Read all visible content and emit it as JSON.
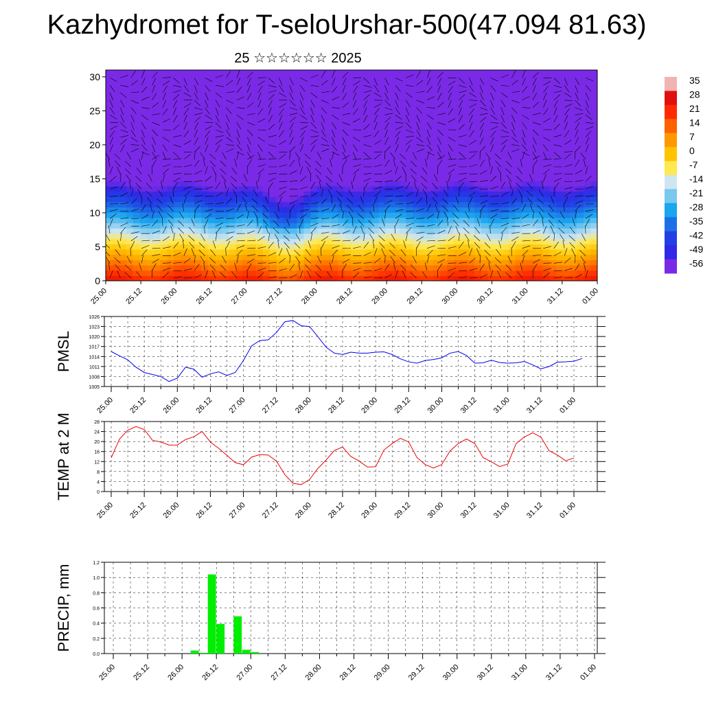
{
  "title": "Kazhydromet for T-seloUrshar-500(47.094 81.63)",
  "subtitle": "25 ☆☆☆☆☆☆ 2025",
  "time_labels": [
    "25.00",
    "25.12",
    "26.00",
    "26.12",
    "27.00",
    "27.12",
    "28.00",
    "28.12",
    "29.00",
    "29.12",
    "30.00",
    "30.12",
    "31.00",
    "31.12",
    "01.00"
  ],
  "chart_data": [
    {
      "type": "heatmap",
      "description_of_panel": "vertical cross-section",
      "ylim": [
        0,
        31
      ],
      "y_ticks": [
        0,
        5,
        10,
        15,
        20,
        25,
        30
      ],
      "colorbar": {
        "labels": [
          "35",
          "28",
          "21",
          "14",
          "7",
          "0",
          "-7",
          "-14",
          "-21",
          "-28",
          "-35",
          "-42",
          "-49",
          "-56"
        ],
        "colors": [
          "#f2b3b3",
          "#e01010",
          "#ff2a00",
          "#ff6000",
          "#ff9800",
          "#ffc400",
          "#ffe850",
          "#cfe6f2",
          "#78c8f0",
          "#1aa6f0",
          "#1c70e6",
          "#2040e6",
          "#3028e6",
          "#7a2ae6"
        ]
      },
      "x": [
        "25.00",
        "25.12",
        "26.00",
        "26.12",
        "27.00",
        "27.12",
        "28.00",
        "28.12",
        "29.00",
        "29.12",
        "30.00",
        "30.12",
        "31.00",
        "31.12",
        "01.00"
      ]
    },
    {
      "type": "line",
      "ylabel": "PMSL",
      "ylim": [
        1005,
        1026
      ],
      "y_ticks": [
        1005,
        1008,
        1011,
        1014,
        1017,
        1020,
        1023,
        1026
      ],
      "color": "#0000ee",
      "x_start": 0,
      "x_step": 3,
      "values": [
        1015.5,
        1014.2,
        1013,
        1010.8,
        1009.2,
        1008.6,
        1008,
        1006.5,
        1007.5,
        1010.8,
        1010.2,
        1007.8,
        1008.8,
        1009.4,
        1008.3,
        1009.2,
        1012.8,
        1017.2,
        1018.8,
        1019,
        1021.2,
        1024.4,
        1024.8,
        1023.2,
        1023,
        1020,
        1016.8,
        1015,
        1014.6,
        1015.3,
        1015,
        1015,
        1015.3,
        1015.4,
        1014.6,
        1013.3,
        1012.4,
        1012,
        1012.8,
        1013.1,
        1013.6,
        1015,
        1015.5,
        1014.3,
        1012,
        1012.1,
        1012.9,
        1012.2,
        1012,
        1012.1,
        1012.5,
        1011.5,
        1010.3,
        1011,
        1012.3,
        1012.4,
        1012.6,
        1013.4
      ]
    },
    {
      "type": "line",
      "ylabel": "TEMP at 2 M",
      "ylim": [
        0,
        28
      ],
      "y_ticks": [
        0,
        4,
        8,
        12,
        16,
        20,
        24,
        28
      ],
      "color": "#ee0000",
      "x_start": 0,
      "x_step": 3,
      "values": [
        13.5,
        21,
        24.5,
        26,
        24.8,
        20.5,
        19.8,
        18.6,
        18.6,
        20.8,
        21.9,
        24,
        19.8,
        17.3,
        14.5,
        11.6,
        10.7,
        13.8,
        14.8,
        14.6,
        12.2,
        6.8,
        3.3,
        2.8,
        4.8,
        9.2,
        12.6,
        16.4,
        17.8,
        14,
        12.2,
        9.8,
        9.9,
        16.6,
        19.2,
        21.3,
        19.8,
        13.6,
        10.8,
        9.4,
        10.8,
        16.2,
        19.2,
        21,
        19.2,
        13.6,
        11.9,
        10,
        11,
        19.2,
        21.8,
        23.5,
        21.8,
        16.3,
        14.6,
        12.3,
        13.4
      ]
    },
    {
      "type": "bar",
      "ylabel": "PRECIP, mm",
      "ylim": [
        0,
        1.2
      ],
      "y_ticks": [
        "0.0",
        "0.2",
        "0.4",
        "0.6",
        "0.8",
        "1.0",
        "1.2"
      ],
      "color": "#00ee00",
      "bars": [
        {
          "x": 27,
          "value": 0.04
        },
        {
          "x": 30,
          "value": 0.01
        },
        {
          "x": 33,
          "value": 1.04
        },
        {
          "x": 36,
          "value": 0.39
        },
        {
          "x": 42,
          "value": 0.49
        },
        {
          "x": 45,
          "value": 0.05
        },
        {
          "x": 48,
          "value": 0.02
        }
      ]
    }
  ]
}
